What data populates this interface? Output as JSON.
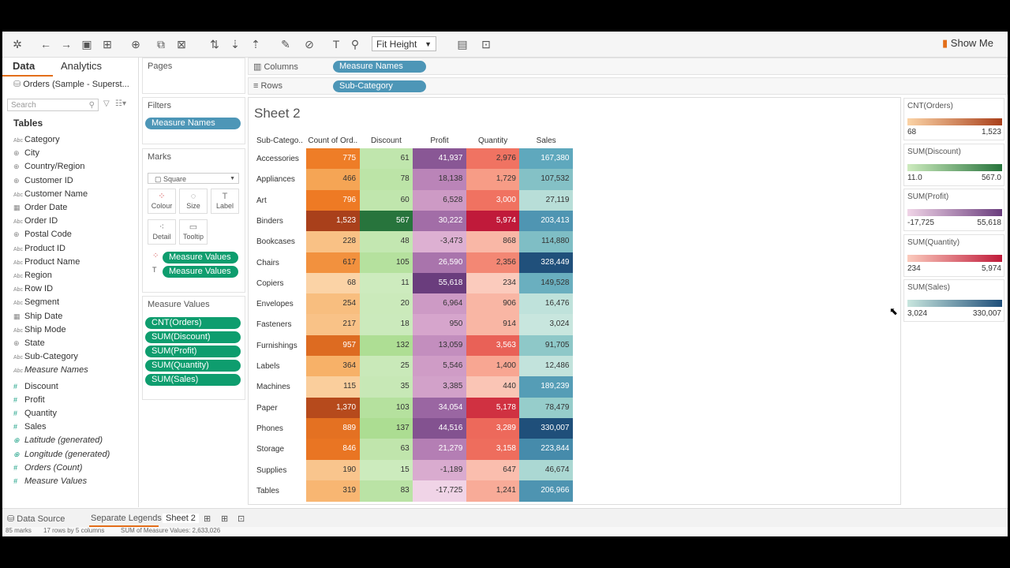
{
  "toolbar": {
    "fit": "Fit Height",
    "show_me": "Show Me"
  },
  "datapane": {
    "tab_data": "Data",
    "tab_analytics": "Analytics",
    "datasource": "Orders (Sample - Superst...",
    "search_placeholder": "Search",
    "tables_heading": "Tables",
    "dimensions": [
      "Category",
      "City",
      "Country/Region",
      "Customer ID",
      "Customer Name",
      "Order Date",
      "Order ID",
      "Postal Code",
      "Product ID",
      "Product Name",
      "Region",
      "Row ID",
      "Segment",
      "Ship Date",
      "Ship Mode",
      "State",
      "Sub-Category",
      "Measure Names"
    ],
    "measures": [
      "Discount",
      "Profit",
      "Quantity",
      "Sales",
      "Latitude (generated)",
      "Longitude (generated)",
      "Orders (Count)",
      "Measure Values"
    ]
  },
  "pages": {
    "title": "Pages"
  },
  "filters": {
    "title": "Filters",
    "pill": "Measure Names"
  },
  "marks": {
    "title": "Marks",
    "type": "Square",
    "colour": "Colour",
    "size": "Size",
    "label": "Label",
    "detail": "Detail",
    "tooltip": "Tooltip",
    "pill_colour": "Measure Values",
    "pill_label": "Measure Values"
  },
  "measure_values": {
    "title": "Measure Values",
    "pills": [
      "CNT(Orders)",
      "SUM(Discount)",
      "SUM(Profit)",
      "SUM(Quantity)",
      "SUM(Sales)"
    ]
  },
  "shelves": {
    "columns_label": "Columns",
    "columns_pill": "Measure Names",
    "rows_label": "Rows",
    "rows_pill": "Sub-Category"
  },
  "sheet": {
    "title": "Sheet 2",
    "row_header": "Sub-Catego..",
    "columns": [
      "Count of Ord..",
      "Discount",
      "Profit",
      "Quantity",
      "Sales"
    ]
  },
  "chart_data": {
    "type": "heatmap",
    "rows": [
      "Accessories",
      "Appliances",
      "Art",
      "Binders",
      "Bookcases",
      "Chairs",
      "Copiers",
      "Envelopes",
      "Fasteners",
      "Furnishings",
      "Labels",
      "Machines",
      "Paper",
      "Phones",
      "Storage",
      "Supplies",
      "Tables"
    ],
    "columns": [
      "Count of Ord..",
      "Discount",
      "Profit",
      "Quantity",
      "Sales"
    ],
    "values": [
      [
        "775",
        "61",
        "41,937",
        "2,976",
        "167,380"
      ],
      [
        "466",
        "78",
        "18,138",
        "1,729",
        "107,532"
      ],
      [
        "796",
        "60",
        "6,528",
        "3,000",
        "27,119"
      ],
      [
        "1,523",
        "567",
        "30,222",
        "5,974",
        "203,413"
      ],
      [
        "228",
        "48",
        "-3,473",
        "868",
        "114,880"
      ],
      [
        "617",
        "105",
        "26,590",
        "2,356",
        "328,449"
      ],
      [
        "68",
        "11",
        "55,618",
        "234",
        "149,528"
      ],
      [
        "254",
        "20",
        "6,964",
        "906",
        "16,476"
      ],
      [
        "217",
        "18",
        "950",
        "914",
        "3,024"
      ],
      [
        "957",
        "132",
        "13,059",
        "3,563",
        "91,705"
      ],
      [
        "364",
        "25",
        "5,546",
        "1,400",
        "12,486"
      ],
      [
        "115",
        "35",
        "3,385",
        "440",
        "189,239"
      ],
      [
        "1,370",
        "103",
        "34,054",
        "5,178",
        "78,479"
      ],
      [
        "889",
        "137",
        "44,516",
        "3,289",
        "330,007"
      ],
      [
        "846",
        "63",
        "21,279",
        "3,158",
        "223,844"
      ],
      [
        "190",
        "15",
        "-1,189",
        "647",
        "46,674"
      ],
      [
        "319",
        "83",
        "-17,725",
        "1,241",
        "206,966"
      ]
    ]
  },
  "legends": [
    {
      "title": "CNT(Orders)",
      "min": "68",
      "max": "1,523",
      "c0": "#fbd3a6",
      "c1": "#a9401b"
    },
    {
      "title": "SUM(Discount)",
      "min": "11.0",
      "max": "567.0",
      "c0": "#cdebbe",
      "c1": "#27743c"
    },
    {
      "title": "SUM(Profit)",
      "min": "-17,725",
      "max": "55,618",
      "c0": "#f0d4e7",
      "c1": "#6a3d7d"
    },
    {
      "title": "SUM(Quantity)",
      "min": "234",
      "max": "5,974",
      "c0": "#fbcbbd",
      "c1": "#c01a3a"
    },
    {
      "title": "SUM(Sales)",
      "min": "3,024",
      "max": "330,007",
      "c0": "#c8e6de",
      "c1": "#1f4f7a"
    }
  ],
  "bottom": {
    "data_source": "Data Source",
    "tab1": "Separate Legends",
    "tab2": "Sheet 2"
  },
  "status": {
    "marks": "85 marks",
    "rows": "17 rows by 5 columns",
    "sum": "SUM of Measure Values: 2,633,026"
  }
}
